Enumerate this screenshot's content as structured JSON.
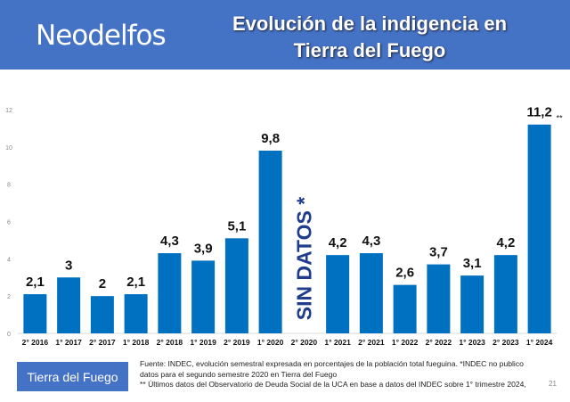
{
  "header": {
    "brand": "Neodelfos",
    "title_line1": "Evolución de la indigencia en",
    "title_line2": "Tierra del Fuego",
    "background": "#4472c4"
  },
  "chart_data": {
    "type": "bar",
    "title": "Evolución de la indigencia en Tierra del Fuego",
    "categories": [
      "2° 2016",
      "1° 2017",
      "2° 2017",
      "1° 2018",
      "2° 2018",
      "1° 2019",
      "2° 2019",
      "1° 2020",
      "2° 2020",
      "1° 2021",
      "2° 2021",
      "1° 2022",
      "2° 2022",
      "1° 2023",
      "2° 2023",
      "1° 2024"
    ],
    "series": [
      {
        "name": "Tierra del Fuego",
        "values": [
          2.1,
          3,
          2,
          2.1,
          4.3,
          3.9,
          5.1,
          9.8,
          null,
          4.2,
          4.3,
          2.6,
          3.7,
          3.1,
          4.2,
          11.2
        ]
      }
    ],
    "data_labels": [
      "2,1",
      "3",
      "2",
      "2,1",
      "4,3",
      "3,9",
      "5,1",
      "9,8",
      "",
      "4,2",
      "4,3",
      "2,6",
      "3,7",
      "3,1",
      "4,2",
      "11,2"
    ],
    "ylim": [
      0,
      12
    ],
    "yticks": [
      0,
      2,
      4,
      6,
      8,
      10,
      12
    ],
    "grid": false,
    "bar_color": "#0070c0",
    "annotations": {
      "no_data": "SIN DATOS *",
      "last_marker": "**"
    }
  },
  "legend": {
    "label": "Tierra del Fuego"
  },
  "footer": {
    "line1": "Fuente: INDEC, evolución semestral expresada en porcentajes de la población total fueguina. *INDEC no publico datos para el segundo semestre 2020 en Tierra del Fuego",
    "line2": "** Últimos datos del Observatorio de Deuda Social de la UCA en base a datos del INDEC sobre 1° trimestre 2024,",
    "page": "21"
  }
}
